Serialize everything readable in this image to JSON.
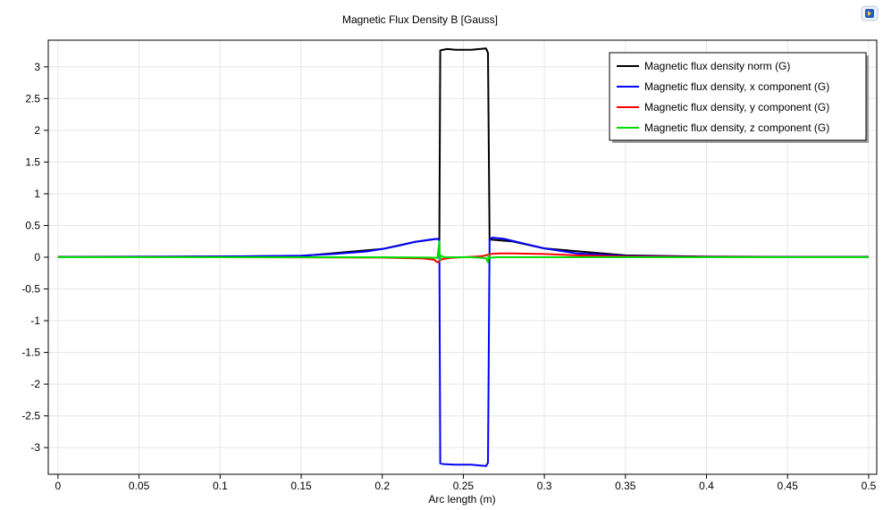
{
  "chart_data": {
    "type": "line",
    "title": "Magnetic Flux Density B [Gauss]",
    "xlabel": "Arc length (m)",
    "ylabel": "",
    "xlim": [
      -0.006,
      0.505
    ],
    "ylim": [
      -3.42,
      3.42
    ],
    "xticks": [
      0,
      0.05,
      0.1,
      0.15,
      0.2,
      0.25,
      0.3,
      0.35,
      0.4,
      0.45,
      0.5
    ],
    "xtick_labels": [
      "0",
      "0.05",
      "0.1",
      "0.15",
      "0.2",
      "0.25",
      "0.3",
      "0.35",
      "0.4",
      "0.45",
      "0.5"
    ],
    "yticks": [
      -3,
      -2.5,
      -2,
      -1.5,
      -1,
      -0.5,
      0,
      0.5,
      1,
      1.5,
      2,
      2.5,
      3
    ],
    "ytick_labels": [
      "-3",
      "-2.5",
      "-2",
      "-1.5",
      "-1",
      "-0.5",
      "0",
      "0.5",
      "1",
      "1.5",
      "2",
      "2.5",
      "3"
    ],
    "grid": true,
    "legend_position": "top-right",
    "series": [
      {
        "name": "Magnetic flux density norm (G)",
        "color": "#000000",
        "x": [
          0,
          0.05,
          0.1,
          0.15,
          0.2,
          0.22,
          0.234,
          0.2352,
          0.2358,
          0.24,
          0.245,
          0.25,
          0.255,
          0.26,
          0.264,
          0.2652,
          0.2662,
          0.28,
          0.3,
          0.35,
          0.4,
          0.45,
          0.5
        ],
        "y": [
          0.005,
          0.008,
          0.012,
          0.02,
          0.13,
          0.24,
          0.29,
          0.27,
          3.26,
          3.28,
          3.27,
          3.27,
          3.27,
          3.28,
          3.29,
          3.22,
          0.28,
          0.25,
          0.14,
          0.03,
          0.01,
          0.006,
          0.005
        ]
      },
      {
        "name": "Magnetic flux density, x component (G)",
        "color": "#0000ff",
        "x": [
          0,
          0.05,
          0.1,
          0.15,
          0.17,
          0.19,
          0.2,
          0.21,
          0.22,
          0.23,
          0.234,
          0.2352,
          0.2358,
          0.238,
          0.245,
          0.25,
          0.255,
          0.26,
          0.264,
          0.2652,
          0.2662,
          0.268,
          0.275,
          0.28,
          0.29,
          0.3,
          0.32,
          0.35,
          0.4,
          0.45,
          0.5
        ],
        "y": [
          0.002,
          0.005,
          0.01,
          0.025,
          0.05,
          0.09,
          0.13,
          0.18,
          0.24,
          0.28,
          0.29,
          0.27,
          -3.25,
          -3.26,
          -3.27,
          -3.27,
          -3.27,
          -3.28,
          -3.29,
          -3.24,
          0.28,
          0.31,
          0.29,
          0.26,
          0.2,
          0.14,
          0.06,
          0.02,
          0.005,
          0.003,
          0.002
        ]
      },
      {
        "name": "Magnetic flux density, y component (G)",
        "color": "#ff0000",
        "x": [
          0,
          0.1,
          0.2,
          0.225,
          0.232,
          0.234,
          0.237,
          0.242,
          0.25,
          0.258,
          0.262,
          0.264,
          0.267,
          0.272,
          0.28,
          0.3,
          0.32,
          0.35,
          0.4,
          0.5
        ],
        "y": [
          0,
          0,
          -0.005,
          -0.02,
          -0.04,
          -0.08,
          -0.03,
          -0.01,
          0,
          0.01,
          0.02,
          0.03,
          0.05,
          0.06,
          0.06,
          0.05,
          0.03,
          0.01,
          0.003,
          0
        ]
      },
      {
        "name": "Magnetic flux density, z component (G)",
        "color": "#00dd00",
        "x": [
          0,
          0.1,
          0.2,
          0.23,
          0.234,
          0.2352,
          0.2355,
          0.236,
          0.238,
          0.245,
          0.255,
          0.262,
          0.264,
          0.2652,
          0.2656,
          0.266,
          0.27,
          0.3,
          0.4,
          0.5
        ],
        "y": [
          0,
          0,
          0,
          -0.005,
          -0.01,
          0.25,
          -0.05,
          0.03,
          0,
          0,
          0,
          -0.01,
          -0.02,
          -0.08,
          0.03,
          -0.01,
          0,
          0,
          0,
          0
        ]
      }
    ]
  },
  "toolbar": {
    "icon": "image-export-icon"
  }
}
